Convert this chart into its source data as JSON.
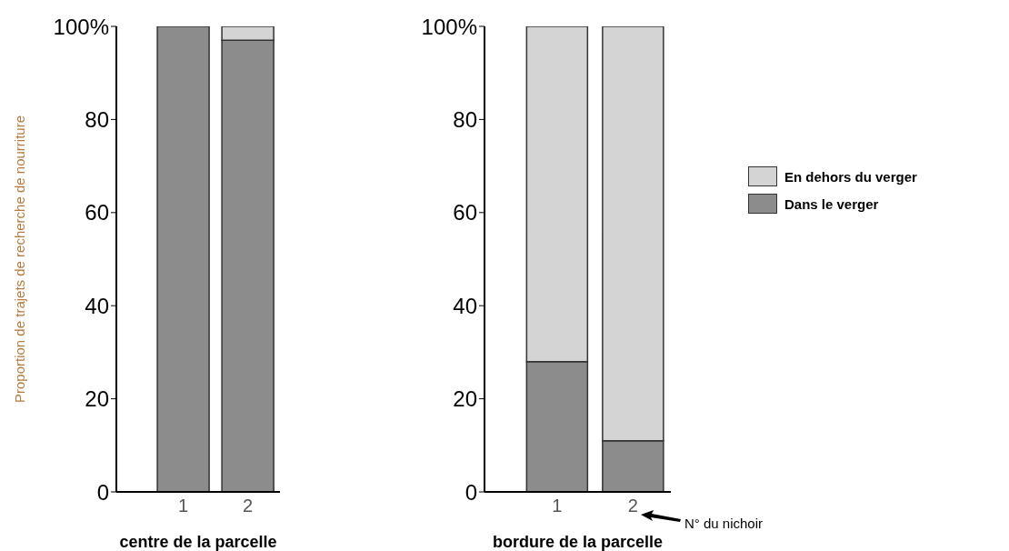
{
  "chart_data": [
    {
      "type": "bar",
      "stacked": true,
      "xlabel": "centre de la parcelle",
      "ylabel": "Proportion de trajets de recherche de nourriture",
      "categories": [
        "1",
        "2"
      ],
      "series": [
        {
          "color": "#8c8c8c",
          "values": [
            100,
            97
          ]
        },
        {
          "color": "#d4d4d4",
          "values": [
            0,
            3
          ]
        }
      ],
      "ylim": [
        0,
        100
      ],
      "yticks": [
        0,
        20,
        40,
        60,
        80,
        {
          "value": 100,
          "label": "100%"
        }
      ],
      "legend": false
    },
    {
      "type": "bar",
      "stacked": true,
      "xlabel": "bordure de la parcelle",
      "categories": [
        "1",
        "2"
      ],
      "series": [
        {
          "name": "Dans le verger",
          "color": "#8c8c8c",
          "values": [
            28,
            11
          ]
        },
        {
          "name": "En dehors du verger",
          "color": "#d4d4d4",
          "values": [
            72,
            89
          ]
        }
      ],
      "ylim": [
        0,
        100
      ],
      "yticks": [
        0,
        20,
        40,
        60,
        80,
        {
          "value": 100,
          "label": "100%"
        }
      ],
      "legend": "right",
      "annotations": [
        "N° du nichoir"
      ]
    }
  ]
}
